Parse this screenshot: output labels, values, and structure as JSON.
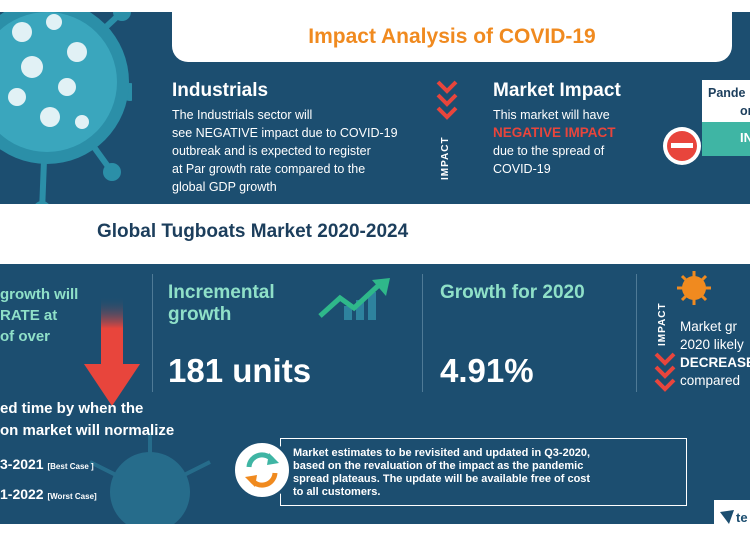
{
  "header": {
    "title": "Impact Analysis of COVID-19"
  },
  "industrials": {
    "heading": "Industrials",
    "body": [
      "The Industrials sector will",
      "see NEGATIVE impact due to COVID-19",
      "outbreak and is expected to register",
      "at Par growth rate compared to the",
      "global GDP growth"
    ]
  },
  "impact_tag": {
    "label": "IMPACT"
  },
  "market_impact": {
    "heading": "Market Impact",
    "line1": "This market will have",
    "emphasis": "NEGATIVE IMPACT",
    "line3": "due to the spread of",
    "line4": "COVID-19"
  },
  "pandemic_box": {
    "line1": "Pande",
    "line2": "on",
    "status": "IN"
  },
  "band": {
    "title": "Global Tugboats Market 2020-2024"
  },
  "growth_partial": {
    "line1": "growth will",
    "line2": "RATE at",
    "line3": "of over"
  },
  "incremental": {
    "label_line1": "Incremental",
    "label_line2": "growth",
    "value": "181 units"
  },
  "growth_2020": {
    "label": "Growth for 2020",
    "value": "4.91%"
  },
  "right_partial": {
    "impact_label": "IMPACT",
    "line1": "Market gr",
    "line2": "2020 likely",
    "line3": "DECREASE",
    "line4": "compared"
  },
  "normalize": {
    "line1": "ed time by when the",
    "line2": "on market will normalize",
    "best_value": "3-2021",
    "best_label": "[Best Case ]",
    "worst_value": "1-2022",
    "worst_label": "[Worst Case]"
  },
  "note": {
    "lines": [
      "Market estimates to be revisited and updated in Q3-2020,",
      "based on the revaluation of the impact as the pandemic",
      "spread plateaus. The update will be available free of cost",
      "to all customers."
    ]
  },
  "logo": {
    "text": "te"
  },
  "colors": {
    "background": "#1c4e70",
    "title_orange": "#f08a1f",
    "negative_red": "#e8453c",
    "accent_teal": "#8fe0c8",
    "pandemic_teal": "#3fb5a4"
  }
}
